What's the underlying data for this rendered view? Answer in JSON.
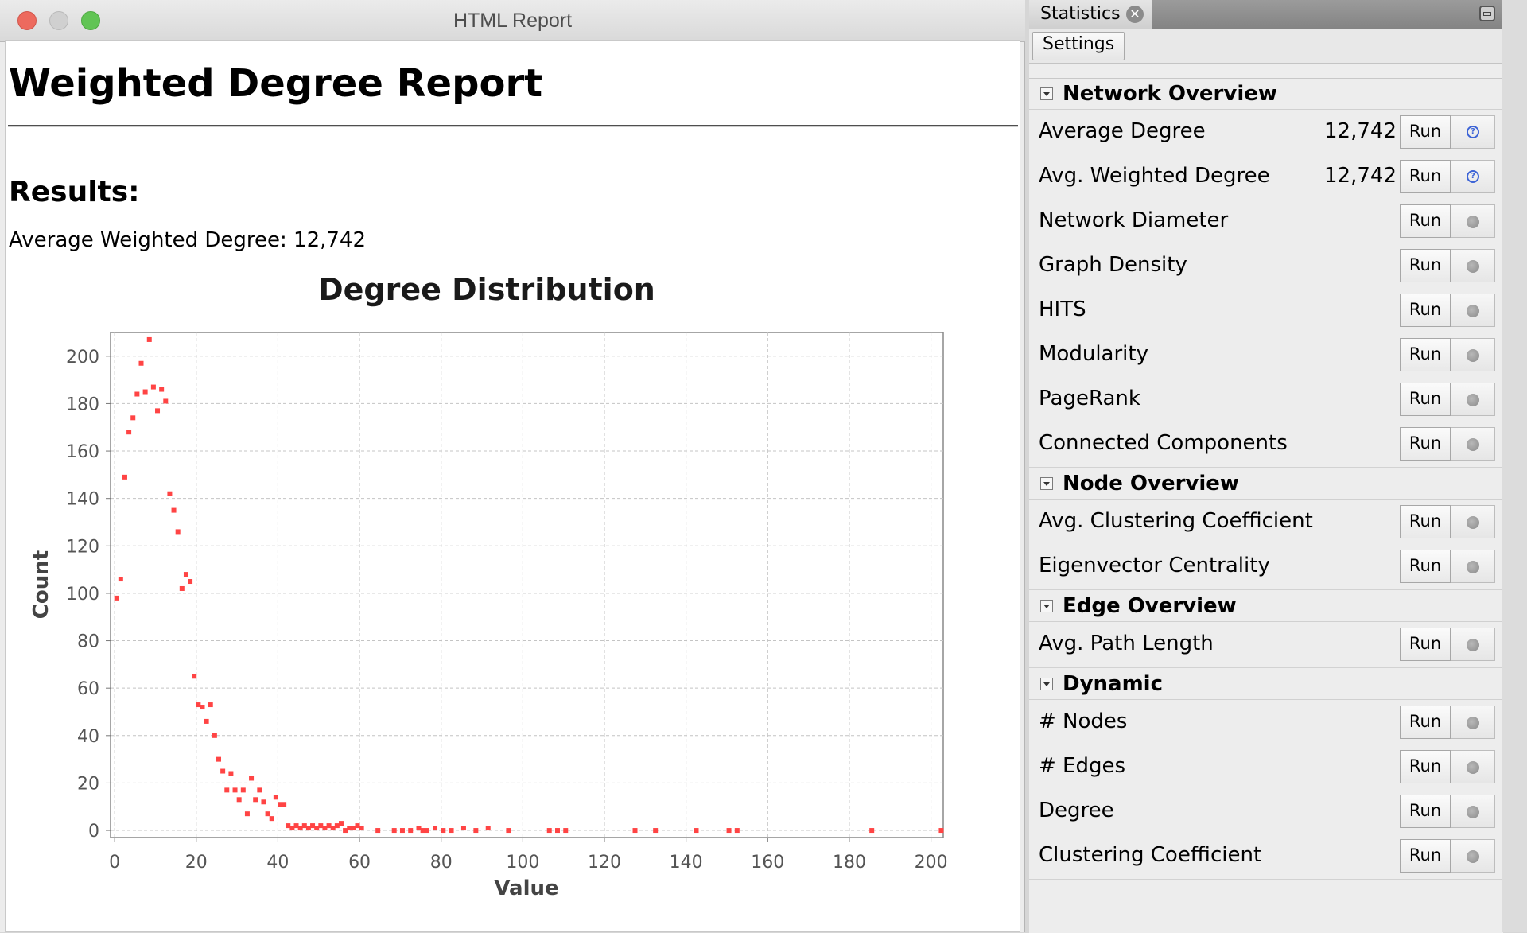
{
  "window": {
    "title": "HTML Report"
  },
  "report": {
    "title": "Weighted Degree Report",
    "results_heading": "Results:",
    "results_line": "Average Weighted Degree: 12,742"
  },
  "chart_data": {
    "type": "scatter",
    "title": "Degree Distribution",
    "xlabel": "Value",
    "ylabel": "Count",
    "xlim": [
      -1,
      203
    ],
    "ylim": [
      -3,
      210
    ],
    "x_ticks": [
      0,
      20,
      40,
      60,
      80,
      100,
      120,
      140,
      160,
      180,
      200
    ],
    "y_ticks": [
      0,
      20,
      40,
      60,
      80,
      100,
      120,
      140,
      160,
      180,
      200
    ],
    "grid": true,
    "point_color": "#ff4444",
    "points": [
      [
        0.5,
        98
      ],
      [
        1.5,
        106
      ],
      [
        2.5,
        149
      ],
      [
        3.5,
        168
      ],
      [
        4.5,
        174
      ],
      [
        5.5,
        184
      ],
      [
        6.5,
        197
      ],
      [
        7.5,
        185
      ],
      [
        8.5,
        207
      ],
      [
        9.5,
        187
      ],
      [
        10.5,
        177
      ],
      [
        11.5,
        186
      ],
      [
        12.5,
        181
      ],
      [
        13.5,
        142
      ],
      [
        14.5,
        135
      ],
      [
        15.5,
        126
      ],
      [
        16.5,
        102
      ],
      [
        17.5,
        108
      ],
      [
        18.5,
        105
      ],
      [
        19.5,
        65
      ],
      [
        20.5,
        53
      ],
      [
        21.5,
        52
      ],
      [
        22.5,
        46
      ],
      [
        23.5,
        53
      ],
      [
        24.5,
        40
      ],
      [
        25.5,
        30
      ],
      [
        26.5,
        25
      ],
      [
        27.5,
        17
      ],
      [
        28.5,
        24
      ],
      [
        29.5,
        17
      ],
      [
        30.5,
        13
      ],
      [
        31.5,
        17
      ],
      [
        32.5,
        7
      ],
      [
        33.5,
        22
      ],
      [
        34.5,
        13
      ],
      [
        35.5,
        17
      ],
      [
        36.5,
        12
      ],
      [
        37.5,
        7
      ],
      [
        38.5,
        5
      ],
      [
        39.5,
        14
      ],
      [
        40.5,
        11
      ],
      [
        41.5,
        11
      ],
      [
        42.5,
        2
      ],
      [
        43.5,
        1
      ],
      [
        44.5,
        2
      ],
      [
        45.5,
        1
      ],
      [
        46.5,
        2
      ],
      [
        47.5,
        1
      ],
      [
        48.5,
        2
      ],
      [
        49.5,
        1
      ],
      [
        50.5,
        2
      ],
      [
        51.5,
        1
      ],
      [
        52.5,
        2
      ],
      [
        53.5,
        1
      ],
      [
        54.5,
        2
      ],
      [
        55.5,
        3
      ],
      [
        56.5,
        0
      ],
      [
        57.5,
        1
      ],
      [
        58.5,
        1
      ],
      [
        59.5,
        2
      ],
      [
        60.5,
        1
      ],
      [
        64.5,
        0
      ],
      [
        68.5,
        0
      ],
      [
        70.5,
        0
      ],
      [
        72.5,
        0
      ],
      [
        74.5,
        1
      ],
      [
        75.5,
        0
      ],
      [
        76.5,
        0
      ],
      [
        78.5,
        1
      ],
      [
        80.5,
        0
      ],
      [
        82.5,
        0
      ],
      [
        85.5,
        1
      ],
      [
        88.5,
        0
      ],
      [
        91.5,
        1
      ],
      [
        96.5,
        0
      ],
      [
        106.5,
        0
      ],
      [
        108.5,
        0
      ],
      [
        110.5,
        0
      ],
      [
        127.5,
        0
      ],
      [
        132.5,
        0
      ],
      [
        142.5,
        0
      ],
      [
        150.5,
        0
      ],
      [
        152.5,
        0
      ],
      [
        185.5,
        0
      ],
      [
        202.5,
        0
      ]
    ]
  },
  "stats": {
    "tab_label": "Statistics",
    "settings_label": "Settings",
    "run_label": "Run",
    "sections": [
      {
        "title": "Network Overview",
        "rows": [
          {
            "label": "Average Degree",
            "value": "12,742",
            "has_result": true
          },
          {
            "label": "Avg. Weighted Degree",
            "value": "12,742",
            "has_result": true
          },
          {
            "label": "Network Diameter",
            "value": "",
            "has_result": false
          },
          {
            "label": "Graph Density",
            "value": "",
            "has_result": false
          },
          {
            "label": "HITS",
            "value": "",
            "has_result": false
          },
          {
            "label": "Modularity",
            "value": "",
            "has_result": false
          },
          {
            "label": "PageRank",
            "value": "",
            "has_result": false
          },
          {
            "label": "Connected Components",
            "value": "",
            "has_result": false
          }
        ]
      },
      {
        "title": "Node Overview",
        "rows": [
          {
            "label": "Avg. Clustering Coefficient",
            "value": "",
            "has_result": false
          },
          {
            "label": "Eigenvector Centrality",
            "value": "",
            "has_result": false
          }
        ]
      },
      {
        "title": "Edge Overview",
        "rows": [
          {
            "label": "Avg. Path Length",
            "value": "",
            "has_result": false
          }
        ]
      },
      {
        "title": "Dynamic",
        "rows": [
          {
            "label": "# Nodes",
            "value": "",
            "has_result": false
          },
          {
            "label": "# Edges",
            "value": "",
            "has_result": false
          },
          {
            "label": "Degree",
            "value": "",
            "has_result": false
          },
          {
            "label": "Clustering Coefficient",
            "value": "",
            "has_result": false
          }
        ]
      }
    ]
  }
}
